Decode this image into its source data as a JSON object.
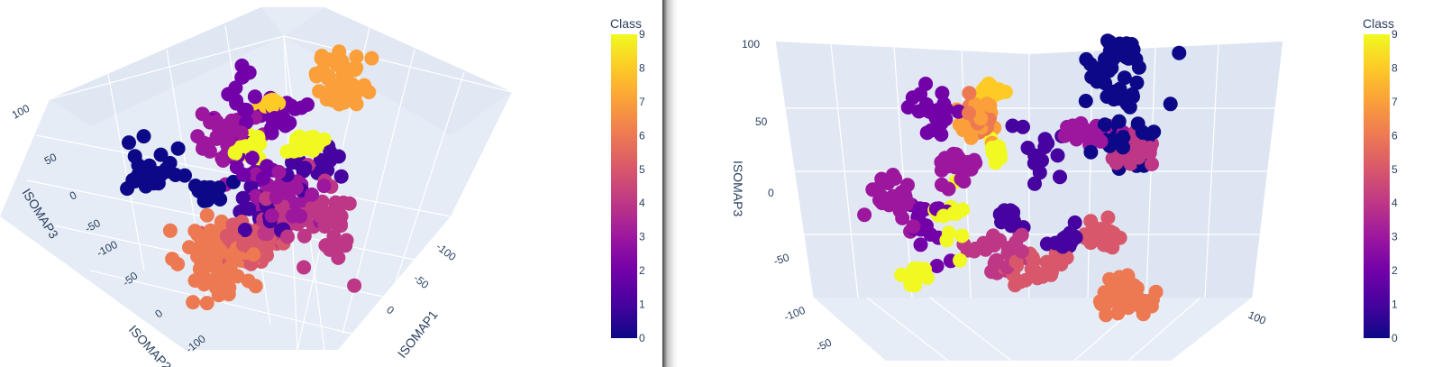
{
  "chart_data": [
    {
      "type": "scatter",
      "dimensions": 3,
      "title": "",
      "axes": {
        "x": {
          "label": "ISOMAP1",
          "ticks": [
            "-100",
            "-50",
            "0"
          ]
        },
        "y": {
          "label": "ISOMAP2",
          "ticks": [
            "-100",
            "-50",
            "0"
          ]
        },
        "z": {
          "label": "ISOMAP3",
          "ticks": [
            "-100",
            "-50",
            "0",
            "50",
            "100"
          ]
        }
      },
      "colorbar": {
        "title": "Class",
        "min": 0,
        "max": 9,
        "ticks": [
          "0",
          "1",
          "2",
          "3",
          "4",
          "5",
          "6",
          "7",
          "8",
          "9"
        ],
        "colorscale": "plasma"
      },
      "clusters": [
        {
          "class": 0,
          "n": 55
        },
        {
          "class": 1,
          "n": 35
        },
        {
          "class": 2,
          "n": 50
        },
        {
          "class": 3,
          "n": 70
        },
        {
          "class": 4,
          "n": 65
        },
        {
          "class": 5,
          "n": 70
        },
        {
          "class": 6,
          "n": 90
        },
        {
          "class": 7,
          "n": 45
        },
        {
          "class": 8,
          "n": 12
        },
        {
          "class": 9,
          "n": 40
        }
      ]
    },
    {
      "type": "scatter",
      "dimensions": 3,
      "title": "",
      "axes": {
        "z": {
          "label": "ISOMAP3",
          "ticks": [
            "-100",
            "-50",
            "0",
            "50",
            "100"
          ]
        },
        "x": {
          "label": "",
          "ticks": [
            "100"
          ]
        }
      },
      "colorbar": {
        "title": "Class",
        "min": 0,
        "max": 9,
        "ticks": [
          "0",
          "1",
          "2",
          "3",
          "4",
          "5",
          "6",
          "7",
          "8",
          "9"
        ],
        "colorscale": "plasma"
      },
      "clusters": [
        {
          "class": 0,
          "n": 75
        },
        {
          "class": 1,
          "n": 45
        },
        {
          "class": 2,
          "n": 40
        },
        {
          "class": 3,
          "n": 75
        },
        {
          "class": 4,
          "n": 55
        },
        {
          "class": 5,
          "n": 60
        },
        {
          "class": 6,
          "n": 80
        },
        {
          "class": 7,
          "n": 30
        },
        {
          "class": 8,
          "n": 12
        },
        {
          "class": 9,
          "n": 35
        }
      ]
    }
  ]
}
